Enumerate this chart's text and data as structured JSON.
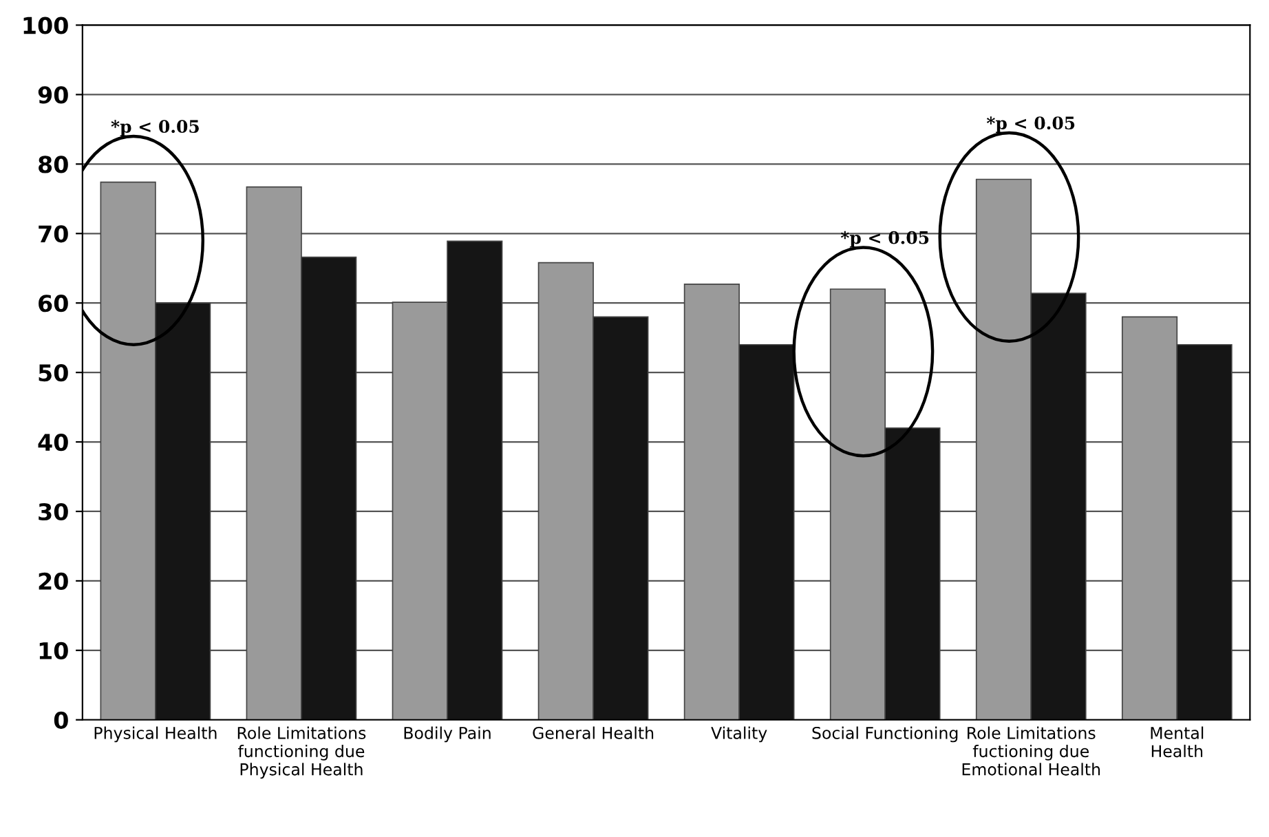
{
  "chart_data": {
    "type": "bar",
    "categories": [
      "Physical Health",
      "Role Limitations\nfunctioning due\nPhysical Health",
      "Bodily Pain",
      "General Health",
      "Vitality",
      "Social Functioning",
      "Role Limitations\nfuctioning due\nEmotional Health",
      "Mental\nHealth"
    ],
    "series": [
      {
        "color": "#9a9a9a",
        "values": [
          77.4,
          76.7,
          60.1,
          65.8,
          62.7,
          62.0,
          77.8,
          58.0
        ]
      },
      {
        "color": "#151515",
        "values": [
          60.0,
          66.6,
          68.9,
          58.0,
          54.0,
          42.0,
          61.4,
          54.0
        ]
      }
    ],
    "ylim": [
      0,
      100
    ],
    "yticks": [
      0,
      10,
      20,
      30,
      40,
      50,
      60,
      70,
      80,
      90,
      100
    ],
    "grid": "y",
    "annotations": [
      "*p < 0.05",
      "*p < 0.05",
      "*p < 0.05"
    ]
  }
}
